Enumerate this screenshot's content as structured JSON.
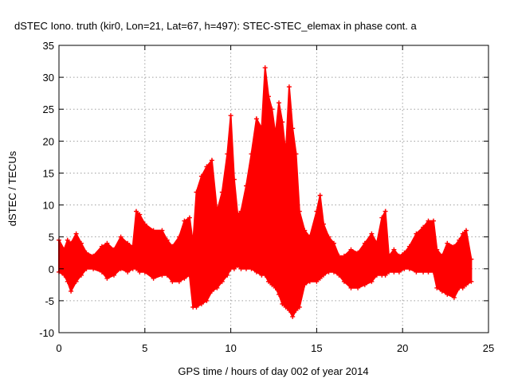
{
  "chart_data": {
    "type": "scatter",
    "title": "dSTEC Iono. truth (kir0, Lon=21, Lat=67, h=497): STEC-STEC_elemax in phase cont. a",
    "xlabel": "GPS time / hours of day 002 of year 2014",
    "ylabel": "dSTEC  / TECUs",
    "xlim": [
      0,
      25
    ],
    "ylim": [
      -10,
      35
    ],
    "x_ticks": [
      0,
      5,
      10,
      15,
      20,
      25
    ],
    "y_ticks": [
      -10,
      -5,
      0,
      5,
      10,
      15,
      20,
      25,
      30,
      35
    ],
    "x_tick_labels": [
      "0",
      "5",
      "10",
      "15",
      "20",
      "25"
    ],
    "y_tick_labels": [
      "-10",
      "-5",
      "0",
      "5",
      "10",
      "15",
      "20",
      "25",
      "30",
      "35"
    ],
    "grid": true,
    "marker": "+",
    "series_color": "#ff0000",
    "envelope": {
      "x": [
        0.0,
        0.3,
        0.5,
        0.7,
        1.0,
        1.3,
        1.6,
        2.0,
        2.5,
        2.8,
        3.2,
        3.6,
        4.0,
        4.3,
        4.5,
        4.7,
        5.0,
        5.5,
        6.0,
        6.3,
        6.6,
        7.0,
        7.3,
        7.6,
        7.8,
        8.0,
        8.3,
        8.6,
        8.9,
        9.2,
        9.5,
        9.8,
        10.0,
        10.2,
        10.4,
        10.6,
        10.9,
        11.2,
        11.5,
        11.8,
        12.0,
        12.2,
        12.4,
        12.6,
        12.8,
        13.0,
        13.2,
        13.4,
        13.6,
        13.8,
        14.0,
        14.3,
        14.6,
        15.0,
        15.2,
        15.4,
        15.7,
        16.0,
        16.3,
        16.6,
        17.0,
        17.4,
        17.8,
        18.2,
        18.5,
        18.8,
        19.0,
        19.2,
        19.5,
        19.8,
        20.1,
        20.4,
        20.8,
        21.2,
        21.5,
        21.8,
        22.0,
        22.3,
        22.6,
        23.0,
        23.3,
        23.5,
        23.7,
        24.0
      ],
      "upper": [
        4.5,
        3.0,
        4.5,
        4.0,
        5.5,
        4.0,
        2.5,
        2.0,
        3.5,
        4.0,
        3.0,
        5.0,
        4.0,
        3.5,
        9.0,
        8.5,
        7.0,
        6.0,
        6.0,
        4.5,
        3.5,
        5.0,
        7.5,
        8.0,
        4.0,
        12.0,
        14.5,
        16.0,
        17.0,
        9.0,
        12.0,
        18.0,
        24.0,
        14.0,
        8.5,
        9.0,
        13.0,
        18.0,
        23.5,
        22.0,
        31.5,
        27.0,
        25.0,
        21.0,
        26.0,
        23.0,
        18.0,
        28.5,
        22.0,
        18.0,
        9.0,
        6.0,
        5.0,
        9.0,
        11.5,
        7.0,
        5.0,
        4.0,
        2.0,
        2.0,
        3.0,
        2.5,
        4.0,
        5.5,
        4.0,
        8.0,
        9.0,
        2.0,
        3.0,
        2.0,
        2.5,
        3.5,
        5.5,
        6.5,
        7.5,
        7.5,
        3.0,
        2.0,
        4.0,
        3.5,
        4.5,
        5.5,
        6.0,
        1.5
      ],
      "lower": [
        -0.5,
        -1.0,
        -2.0,
        -3.5,
        -2.0,
        -1.0,
        0.0,
        0.0,
        -0.5,
        -1.5,
        -1.0,
        0.0,
        -0.5,
        0.0,
        0.0,
        -0.5,
        -0.5,
        -1.5,
        -1.0,
        -1.0,
        -2.0,
        -2.0,
        -1.5,
        -1.0,
        -6.0,
        -6.0,
        -5.5,
        -5.0,
        -3.5,
        -3.0,
        -2.0,
        -1.0,
        0.0,
        0.0,
        0.5,
        0.0,
        0.0,
        0.0,
        -0.5,
        -1.0,
        -1.0,
        -2.0,
        -2.5,
        -3.0,
        -4.0,
        -5.5,
        -6.0,
        -6.5,
        -7.5,
        -6.5,
        -6.0,
        -2.5,
        -2.0,
        -2.0,
        -1.5,
        -1.0,
        -0.5,
        -0.5,
        -1.0,
        -2.0,
        -3.0,
        -3.0,
        -2.5,
        -2.0,
        -1.0,
        -1.0,
        -1.0,
        -0.5,
        -0.5,
        -0.5,
        0.0,
        0.0,
        -0.5,
        -0.5,
        -0.5,
        -0.5,
        -3.0,
        -3.5,
        -4.0,
        -4.5,
        -3.0,
        -3.0,
        -2.5,
        -2.0
      ]
    }
  }
}
